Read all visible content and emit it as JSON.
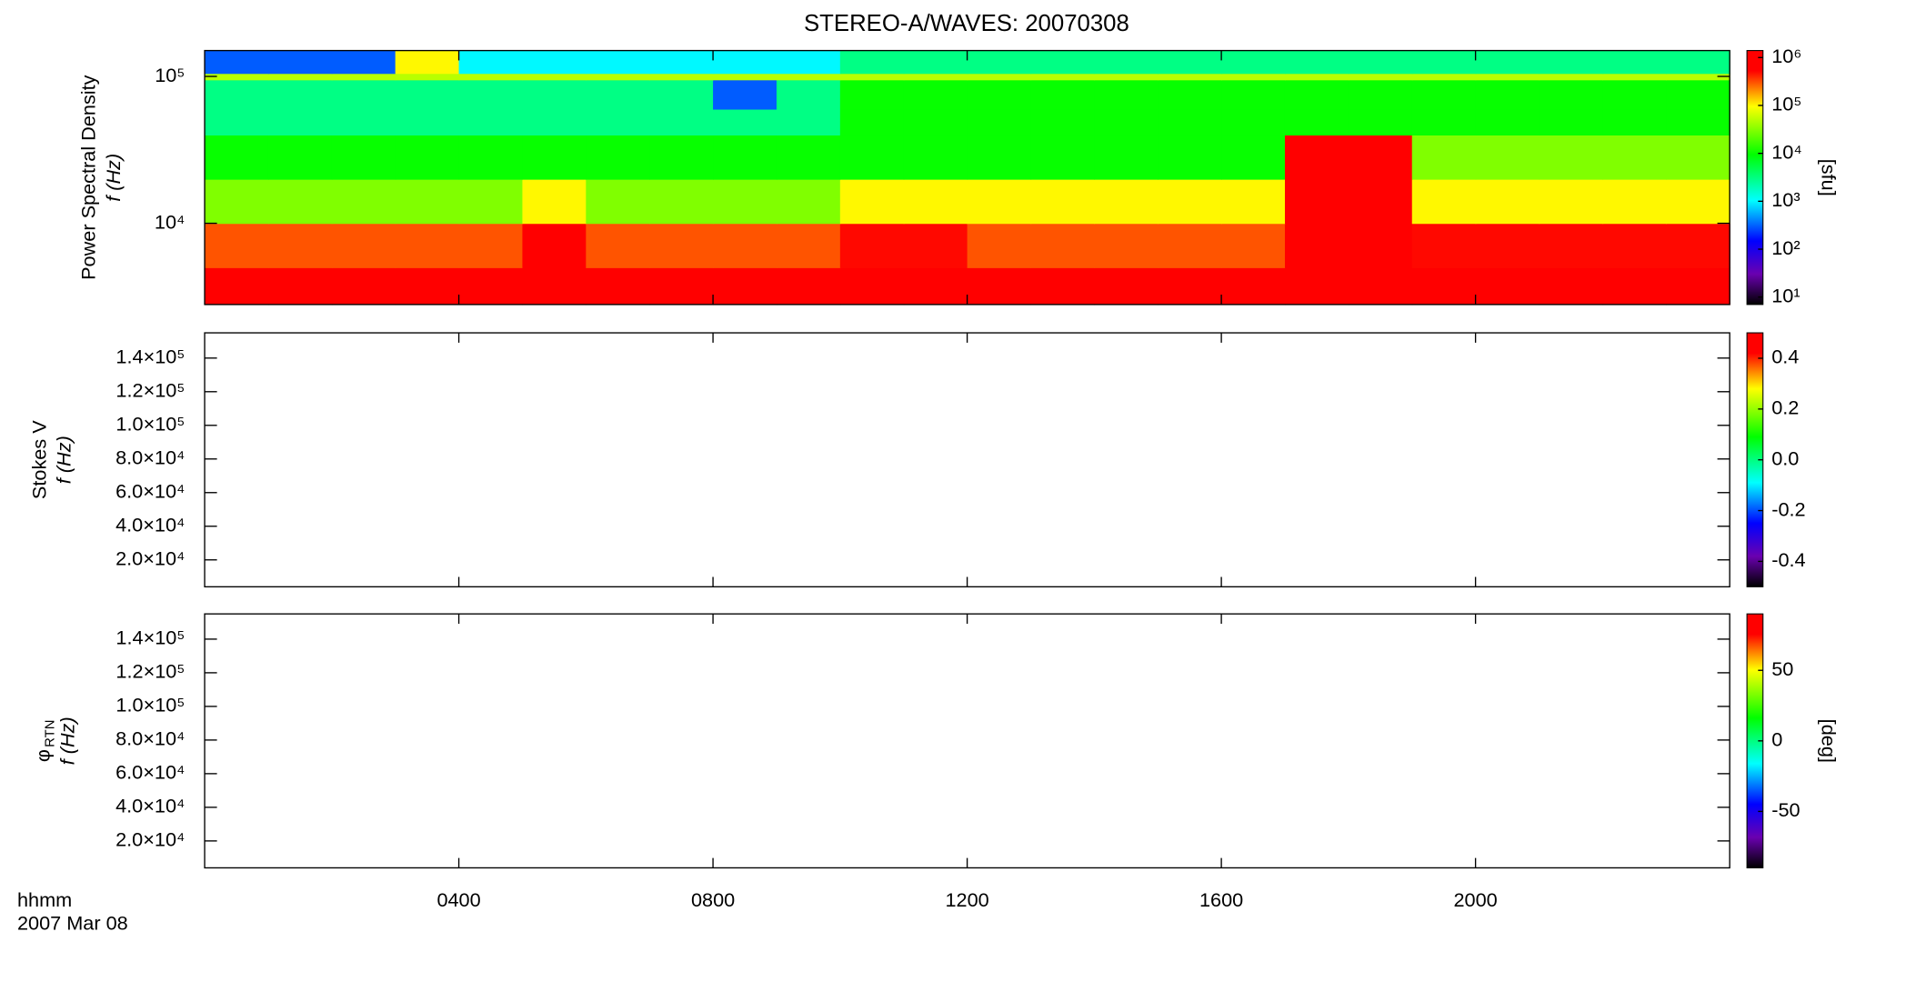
{
  "chart_data": [
    {
      "type": "spectrogram",
      "title": "STEREO-A/WAVES: 20070308",
      "ylabel": "Power Spectral Density",
      "ylabel2": "f (Hz)",
      "ylog": true,
      "ylim": [
        2800,
        150000
      ],
      "yticks": [
        {
          "value": 10000,
          "label": "10⁴"
        },
        {
          "value": 100000,
          "label": "10⁵"
        }
      ],
      "xlim": [
        0,
        24
      ],
      "x_bins": [
        0,
        1,
        2,
        3,
        4,
        5,
        6,
        7,
        8,
        9,
        10,
        11,
        12,
        13,
        14,
        15,
        16,
        17,
        18,
        19,
        20,
        21,
        22,
        23,
        24
      ],
      "y_bins": [
        2800,
        5000,
        10000,
        20000,
        40000,
        60000,
        95000,
        105000,
        150000
      ],
      "values": [
        [
          1000000,
          1000000,
          1000000,
          1000000,
          1000000,
          1000000,
          1000000,
          1000000,
          1000000,
          1000000,
          1000000,
          1000000,
          1000000,
          1000000,
          1000000,
          1000000,
          1000000,
          1000000,
          1000000,
          1000000,
          1000000,
          1000000,
          1000000,
          1000000
        ],
        [
          300000,
          300000,
          300000,
          300000,
          300000,
          1000000,
          300000,
          300000,
          300000,
          300000,
          500000,
          500000,
          300000,
          300000,
          300000,
          300000,
          300000,
          1000000,
          1000000,
          500000,
          500000,
          500000,
          500000,
          500000
        ],
        [
          30000,
          30000,
          30000,
          30000,
          30000,
          100000,
          30000,
          30000,
          30000,
          30000,
          100000,
          100000,
          100000,
          100000,
          100000,
          100000,
          100000,
          1000000,
          1000000,
          100000,
          100000,
          100000,
          100000,
          100000
        ],
        [
          10000,
          10000,
          10000,
          10000,
          10000,
          10000,
          10000,
          10000,
          10000,
          10000,
          10000,
          10000,
          10000,
          10000,
          10000,
          10000,
          10000,
          1000000,
          1000000,
          30000,
          30000,
          30000,
          30000,
          30000
        ],
        [
          3000,
          3000,
          3000,
          3000,
          3000,
          3000,
          3000,
          3000,
          3000,
          3000,
          10000,
          10000,
          10000,
          10000,
          10000,
          10000,
          10000,
          10000,
          10000,
          10000,
          10000,
          10000,
          10000,
          10000
        ],
        [
          3000,
          3000,
          3000,
          3000,
          3000,
          3000,
          3000,
          3000,
          300,
          3000,
          10000,
          10000,
          10000,
          10000,
          10000,
          10000,
          10000,
          10000,
          10000,
          10000,
          10000,
          10000,
          10000,
          10000
        ],
        [
          50000,
          50000,
          50000,
          50000,
          50000,
          50000,
          50000,
          50000,
          50000,
          50000,
          50000,
          50000,
          50000,
          50000,
          50000,
          50000,
          50000,
          50000,
          50000,
          50000,
          50000,
          50000,
          50000,
          50000
        ],
        [
          300,
          300,
          300,
          100000,
          1000,
          1000,
          1000,
          1000,
          1000,
          1000,
          3000,
          3000,
          3000,
          3000,
          3000,
          3000,
          3000,
          3000,
          3000,
          3000,
          3000,
          3000,
          3000,
          3000
        ]
      ],
      "zlog": true,
      "zlim": [
        7,
        1400000
      ],
      "zticks": [
        {
          "value": 10,
          "label": "10¹"
        },
        {
          "value": 100,
          "label": "10²"
        },
        {
          "value": 1000,
          "label": "10³"
        },
        {
          "value": 10000,
          "label": "10⁴"
        },
        {
          "value": 100000,
          "label": "10⁵"
        },
        {
          "value": 1000000,
          "label": "10⁶"
        }
      ],
      "zlabel": "[sfu]",
      "colormap": [
        [
          0,
          "#000000"
        ],
        [
          0.12,
          "#6a00b0"
        ],
        [
          0.25,
          "#0000ff"
        ],
        [
          0.41,
          "#00ffff"
        ],
        [
          0.59,
          "#00ff00"
        ],
        [
          0.78,
          "#ffff00"
        ],
        [
          0.92,
          "#ff0000"
        ],
        [
          1,
          "#ff0000"
        ]
      ]
    },
    {
      "type": "spectrogram",
      "ylabel": "Stokes V",
      "ylabel2": "f (Hz)",
      "ylim": [
        4000,
        155000
      ],
      "yticks": [
        {
          "value": 20000,
          "label": "2.0×10⁴"
        },
        {
          "value": 40000,
          "label": "4.0×10⁴"
        },
        {
          "value": 60000,
          "label": "6.0×10⁴"
        },
        {
          "value": 80000,
          "label": "8.0×10⁴"
        },
        {
          "value": 100000,
          "label": "1.0×10⁵"
        },
        {
          "value": 120000,
          "label": "1.2×10⁵"
        },
        {
          "value": 140000,
          "label": "1.4×10⁵"
        }
      ],
      "xlim": [
        0,
        24
      ],
      "values": [],
      "zlim": [
        -0.5,
        0.5
      ],
      "zticks": [
        {
          "value": -0.4,
          "label": "-0.4"
        },
        {
          "value": -0.2,
          "label": "-0.2"
        },
        {
          "value": 0,
          "label": "0.0"
        },
        {
          "value": 0.2,
          "label": "0.2"
        },
        {
          "value": 0.4,
          "label": "0.4"
        }
      ]
    },
    {
      "type": "spectrogram",
      "ylabel_symbol": "φ",
      "ylabel_subscript": "RTN",
      "ylabel2": "f (Hz)",
      "ylim": [
        4000,
        155000
      ],
      "yticks": [
        {
          "value": 20000,
          "label": "2.0×10⁴"
        },
        {
          "value": 40000,
          "label": "4.0×10⁴"
        },
        {
          "value": 60000,
          "label": "6.0×10⁴"
        },
        {
          "value": 80000,
          "label": "8.0×10⁴"
        },
        {
          "value": 100000,
          "label": "1.0×10⁵"
        },
        {
          "value": 120000,
          "label": "1.2×10⁵"
        },
        {
          "value": 140000,
          "label": "1.4×10⁵"
        }
      ],
      "xlim": [
        0,
        24
      ],
      "values": [],
      "xticks": [
        {
          "value": 4,
          "label": "0400"
        },
        {
          "value": 8,
          "label": "0800"
        },
        {
          "value": 12,
          "label": "1200"
        },
        {
          "value": 16,
          "label": "1600"
        },
        {
          "value": 20,
          "label": "2000"
        }
      ],
      "xlabel": "hhmm",
      "xlabel2": "2007 Mar 08",
      "zlim": [
        -90,
        90
      ],
      "zticks": [
        -50,
        0,
        50
      ],
      "zlabel": "[deg]"
    }
  ]
}
